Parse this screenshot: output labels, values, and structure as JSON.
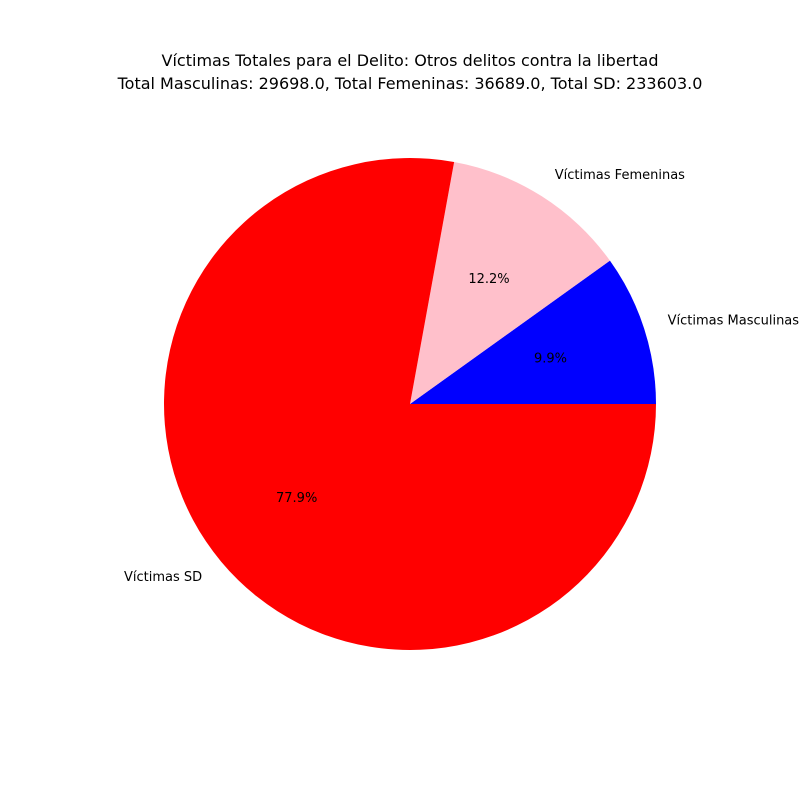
{
  "chart_data": {
    "type": "pie",
    "title": "Víctimas Totales para el Delito: Otros delitos contra la libertad",
    "subtitle": "Total Masculinas: 29698.0, Total Femeninas: 36689.0, Total SD: 233603.0",
    "slices": [
      {
        "label": "Víctimas Masculinas",
        "value": 29698.0,
        "percent_label": "9.9%",
        "color": "#0000ff"
      },
      {
        "label": "Víctimas Femeninas",
        "value": 36689.0,
        "percent_label": "12.2%",
        "color": "#ffc0cb"
      },
      {
        "label": "Víctimas SD",
        "value": 233603.0,
        "percent_label": "77.9%",
        "color": "#ff0000"
      }
    ],
    "start_angle_deg": 0,
    "direction": "counterclockwise"
  }
}
